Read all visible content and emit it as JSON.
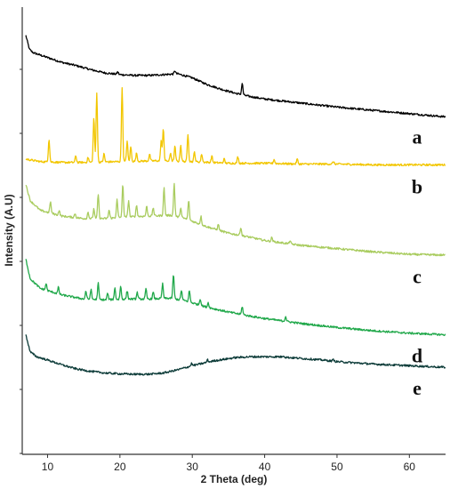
{
  "chart_data": {
    "type": "line",
    "title": "",
    "xlabel": "2 Theta (deg)",
    "ylabel": "Intensity (A.U)",
    "xlim": [
      6.5,
      65
    ],
    "x_ticks": [
      10,
      20,
      30,
      40,
      50,
      60
    ],
    "y_tick_labels": "none",
    "grid": false,
    "legend": "inline labels at right",
    "series": [
      {
        "name": "a",
        "color": "#000000",
        "points": [
          [
            7,
            515
          ],
          [
            7.5,
            498
          ],
          [
            8,
            494
          ],
          [
            10,
            488
          ],
          [
            12,
            482
          ],
          [
            14,
            478
          ],
          [
            16,
            473
          ],
          [
            18,
            469
          ],
          [
            20,
            467
          ],
          [
            22,
            466
          ],
          [
            24,
            466
          ],
          [
            26,
            467
          ],
          [
            28,
            468
          ],
          [
            30,
            463
          ],
          [
            32,
            455
          ],
          [
            34,
            449
          ],
          [
            36,
            444
          ],
          [
            38,
            440
          ],
          [
            40,
            437
          ],
          [
            45,
            432
          ],
          [
            50,
            427
          ],
          [
            55,
            423
          ],
          [
            60,
            419
          ],
          [
            65,
            415
          ]
        ],
        "peaks": [
          [
            19.7,
            3
          ],
          [
            27.6,
            4
          ],
          [
            36.9,
            14
          ]
        ]
      },
      {
        "name": "b",
        "color": "#f2c600",
        "points": [
          [
            7,
            363
          ],
          [
            9,
            360
          ],
          [
            12,
            359
          ],
          [
            15,
            359
          ],
          [
            20,
            360
          ],
          [
            25,
            361
          ],
          [
            30,
            360
          ],
          [
            35,
            358
          ],
          [
            40,
            358
          ],
          [
            45,
            357
          ],
          [
            50,
            357
          ],
          [
            55,
            356
          ],
          [
            60,
            356
          ],
          [
            65,
            356
          ]
        ],
        "peaks": [
          [
            10.2,
            28
          ],
          [
            13.9,
            8
          ],
          [
            15.6,
            6
          ],
          [
            16.4,
            55
          ],
          [
            16.8,
            86
          ],
          [
            17.8,
            10
          ],
          [
            20.3,
            92
          ],
          [
            21.0,
            25
          ],
          [
            21.5,
            18
          ],
          [
            22.3,
            10
          ],
          [
            24.1,
            8
          ],
          [
            25.7,
            25
          ],
          [
            26.0,
            40
          ],
          [
            27.0,
            10
          ],
          [
            27.6,
            18
          ],
          [
            28.4,
            20
          ],
          [
            29.4,
            34
          ],
          [
            30.3,
            12
          ],
          [
            31.3,
            10
          ],
          [
            32.7,
            8
          ],
          [
            34.4,
            5
          ],
          [
            36.3,
            8
          ],
          [
            41.3,
            5
          ],
          [
            44.5,
            6
          ],
          [
            49.5,
            3
          ]
        ]
      },
      {
        "name": "c",
        "color": "#a9cc5f",
        "points": [
          [
            7,
            332
          ],
          [
            7.6,
            312
          ],
          [
            9,
            300
          ],
          [
            12,
            293
          ],
          [
            15,
            290
          ],
          [
            18,
            290
          ],
          [
            21,
            292
          ],
          [
            24,
            293
          ],
          [
            27,
            294
          ],
          [
            29,
            290
          ],
          [
            32,
            280
          ],
          [
            35,
            272
          ],
          [
            38,
            267
          ],
          [
            40,
            263
          ],
          [
            45,
            257
          ],
          [
            50,
            253
          ],
          [
            55,
            249
          ],
          [
            60,
            246
          ],
          [
            65,
            245
          ]
        ],
        "peaks": [
          [
            10.4,
            14
          ],
          [
            11.6,
            6
          ],
          [
            13.8,
            5
          ],
          [
            15.6,
            8
          ],
          [
            16.4,
            12
          ],
          [
            17.0,
            30
          ],
          [
            18.5,
            10
          ],
          [
            19.6,
            22
          ],
          [
            20.4,
            40
          ],
          [
            21.2,
            20
          ],
          [
            22.3,
            14
          ],
          [
            23.7,
            12
          ],
          [
            24.6,
            10
          ],
          [
            26.1,
            34
          ],
          [
            27.5,
            40
          ],
          [
            28.4,
            12
          ],
          [
            29.5,
            24
          ],
          [
            31.2,
            10
          ],
          [
            33.6,
            7
          ],
          [
            36.7,
            10
          ],
          [
            41,
            5
          ],
          [
            43.5,
            4
          ]
        ]
      },
      {
        "name": "d",
        "color": "#20a84a",
        "points": [
          [
            7,
            240
          ],
          [
            7.6,
            216
          ],
          [
            9,
            204
          ],
          [
            12,
            196
          ],
          [
            15,
            191
          ],
          [
            18,
            190
          ],
          [
            21,
            191
          ],
          [
            24,
            191
          ],
          [
            27,
            192
          ],
          [
            29,
            189
          ],
          [
            32,
            181
          ],
          [
            35,
            175
          ],
          [
            38,
            170
          ],
          [
            40,
            167
          ],
          [
            45,
            161
          ],
          [
            50,
            156
          ],
          [
            55,
            152
          ],
          [
            60,
            149
          ],
          [
            65,
            147
          ]
        ],
        "peaks": [
          [
            9.8,
            8
          ],
          [
            11.5,
            8
          ],
          [
            15.3,
            10
          ],
          [
            16.0,
            12
          ],
          [
            17.0,
            20
          ],
          [
            18.3,
            8
          ],
          [
            19.3,
            14
          ],
          [
            20.1,
            16
          ],
          [
            21.0,
            10
          ],
          [
            22.4,
            8
          ],
          [
            23.6,
            12
          ],
          [
            24.6,
            8
          ],
          [
            25.9,
            18
          ],
          [
            27.4,
            30
          ],
          [
            28.5,
            12
          ],
          [
            29.6,
            14
          ],
          [
            31.1,
            8
          ],
          [
            32.2,
            6
          ],
          [
            36.9,
            10
          ],
          [
            42.9,
            6
          ]
        ]
      },
      {
        "name": "e",
        "color": "#0c3b38",
        "points": [
          [
            7,
            147
          ],
          [
            7.6,
            126
          ],
          [
            8.5,
            120
          ],
          [
            10,
            116
          ],
          [
            12,
            110
          ],
          [
            14,
            105
          ],
          [
            16,
            102
          ],
          [
            18,
            100
          ],
          [
            20,
            99
          ],
          [
            22,
            98.5
          ],
          [
            24,
            98.5
          ],
          [
            26,
            100
          ],
          [
            28,
            104
          ],
          [
            30,
            109
          ],
          [
            33,
            115
          ],
          [
            36,
            119
          ],
          [
            38,
            120
          ],
          [
            40,
            120
          ],
          [
            42,
            120
          ],
          [
            45,
            118
          ],
          [
            48,
            116
          ],
          [
            50,
            114
          ],
          [
            55,
            111
          ],
          [
            60,
            109
          ],
          [
            65,
            107
          ]
        ],
        "peaks": [
          [
            29.9,
            3
          ],
          [
            32.1,
            3
          ],
          [
            42.6,
            2
          ],
          [
            49.5,
            2
          ]
        ]
      }
    ]
  }
}
